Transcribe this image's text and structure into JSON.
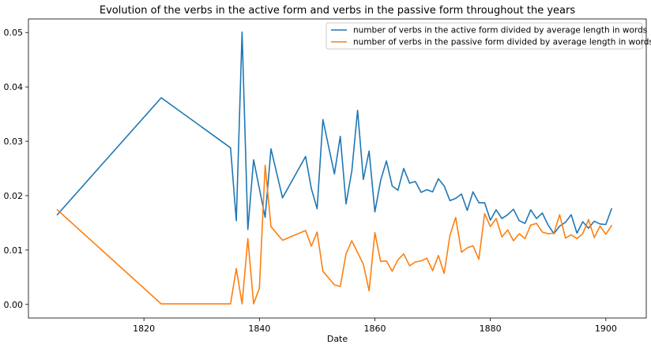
{
  "chart_data": {
    "type": "line",
    "title": "Evolution of the verbs in the active form and verbs in the passive form throughout the years",
    "xlabel": "Date",
    "ylabel": "",
    "xlim": [
      1800,
      1907
    ],
    "ylim": [
      -0.0025,
      0.0525
    ],
    "x_ticks": [
      1820,
      1840,
      1860,
      1880,
      1900
    ],
    "y_ticks": [
      0.0,
      0.01,
      0.02,
      0.03,
      0.04,
      0.05
    ],
    "y_tick_labels": [
      "0.00",
      "0.01",
      "0.02",
      "0.03",
      "0.04",
      "0.05"
    ],
    "grid": false,
    "legend_position": "top-right",
    "series": [
      {
        "name": "number of verbs in the active form divided by average length in words",
        "color": "#1f77b4",
        "x": [
          1805,
          1823,
          1835,
          1836,
          1837,
          1838,
          1839,
          1841,
          1842,
          1844,
          1848,
          1849,
          1850,
          1851,
          1853,
          1854,
          1855,
          1856,
          1857,
          1858,
          1859,
          1860,
          1861,
          1862,
          1863,
          1864,
          1865,
          1866,
          1867,
          1868,
          1869,
          1870,
          1871,
          1872,
          1873,
          1874,
          1875,
          1876,
          1877,
          1878,
          1879,
          1880,
          1881,
          1882,
          1883,
          1884,
          1885,
          1886,
          1887,
          1888,
          1889,
          1890,
          1891,
          1892,
          1893,
          1894,
          1895,
          1896,
          1897,
          1898,
          1899,
          1900,
          1901
        ],
        "values": [
          0.0165,
          0.038,
          0.0288,
          0.0154,
          0.0501,
          0.0138,
          0.0266,
          0.016,
          0.0286,
          0.0196,
          0.0272,
          0.0213,
          0.0176,
          0.034,
          0.024,
          0.0309,
          0.0185,
          0.0245,
          0.0357,
          0.023,
          0.0282,
          0.017,
          0.0228,
          0.0264,
          0.0218,
          0.021,
          0.025,
          0.0223,
          0.0226,
          0.0206,
          0.0211,
          0.0207,
          0.0231,
          0.0218,
          0.0191,
          0.0195,
          0.0203,
          0.0173,
          0.0207,
          0.0187,
          0.0187,
          0.0155,
          0.0174,
          0.0158,
          0.0165,
          0.0175,
          0.0154,
          0.0149,
          0.0174,
          0.0158,
          0.0168,
          0.0146,
          0.013,
          0.0144,
          0.0151,
          0.0165,
          0.0131,
          0.0152,
          0.014,
          0.0153,
          0.0148,
          0.0147,
          0.0176
        ]
      },
      {
        "name": "number of verbs in the passive form divided by average length in words",
        "color": "#ff7f0e",
        "x": [
          1805,
          1823,
          1835,
          1836,
          1837,
          1838,
          1839,
          1840,
          1841,
          1842,
          1844,
          1848,
          1849,
          1850,
          1851,
          1853,
          1854,
          1855,
          1856,
          1858,
          1859,
          1860,
          1861,
          1862,
          1863,
          1864,
          1865,
          1866,
          1867,
          1868,
          1869,
          1870,
          1871,
          1872,
          1873,
          1874,
          1875,
          1876,
          1877,
          1878,
          1879,
          1880,
          1881,
          1882,
          1883,
          1884,
          1885,
          1886,
          1887,
          1888,
          1889,
          1890,
          1891,
          1892,
          1893,
          1894,
          1895,
          1896,
          1897,
          1898,
          1899,
          1900,
          1901
        ],
        "values": [
          0.0174,
          0.0001,
          0.0001,
          0.0066,
          0.0001,
          0.0121,
          0.0001,
          0.003,
          0.0256,
          0.0143,
          0.0118,
          0.0136,
          0.0107,
          0.0133,
          0.0061,
          0.0036,
          0.0033,
          0.0093,
          0.0117,
          0.0074,
          0.0025,
          0.0132,
          0.0079,
          0.008,
          0.0061,
          0.0082,
          0.0093,
          0.0071,
          0.0078,
          0.008,
          0.0085,
          0.0062,
          0.009,
          0.0057,
          0.0127,
          0.016,
          0.0096,
          0.0104,
          0.0108,
          0.0083,
          0.0167,
          0.0143,
          0.0158,
          0.0124,
          0.0137,
          0.0117,
          0.013,
          0.0121,
          0.0146,
          0.0149,
          0.0133,
          0.013,
          0.0131,
          0.0165,
          0.0122,
          0.0128,
          0.0121,
          0.013,
          0.0156,
          0.0123,
          0.0144,
          0.0129,
          0.0145
        ]
      }
    ]
  }
}
